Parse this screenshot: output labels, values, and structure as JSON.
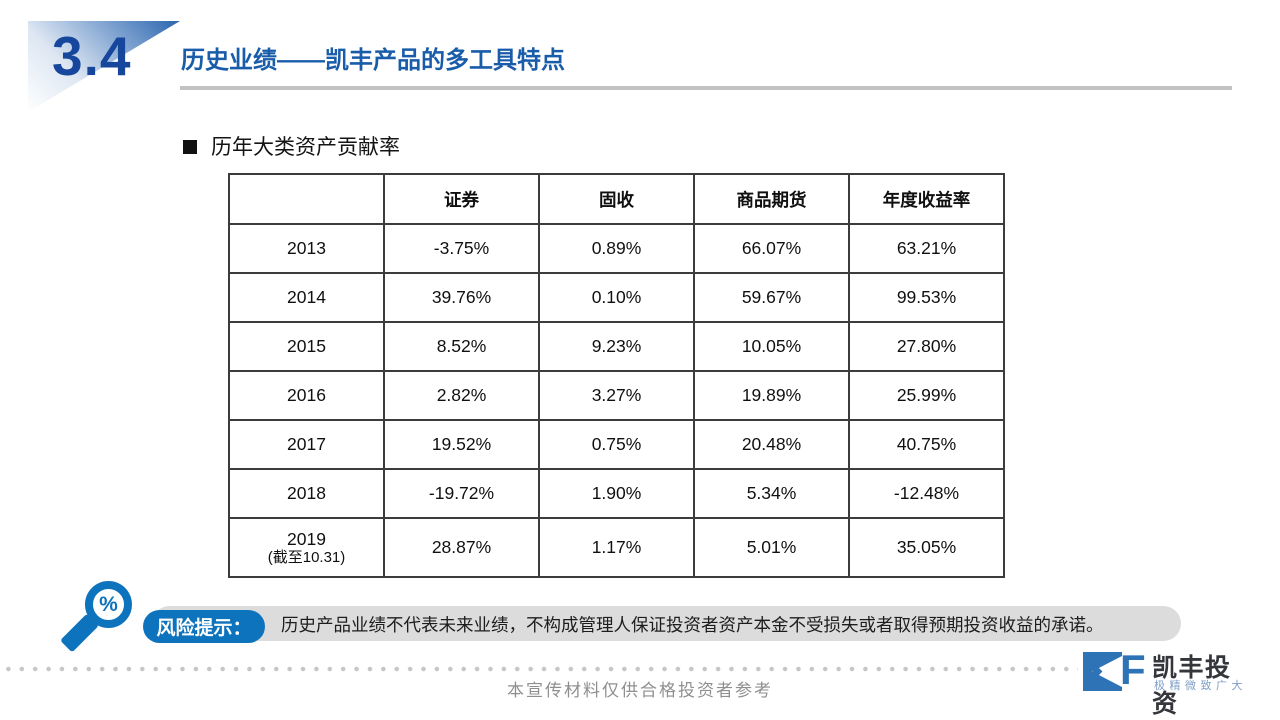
{
  "header": {
    "section_number": "3.4",
    "title": "历史业绩——凯丰产品的多工具特点"
  },
  "content": {
    "bullet_title": "历年大类资产贡献率"
  },
  "table": {
    "headers": [
      "",
      "证券",
      "固收",
      "商品期货",
      "年度收益率"
    ],
    "rows": [
      {
        "year": "2013",
        "year_note": "",
        "cells": [
          "-3.75%",
          "0.89%",
          "66.07%",
          "63.21%"
        ]
      },
      {
        "year": "2014",
        "year_note": "",
        "cells": [
          "39.76%",
          "0.10%",
          "59.67%",
          "99.53%"
        ]
      },
      {
        "year": "2015",
        "year_note": "",
        "cells": [
          "8.52%",
          "9.23%",
          "10.05%",
          "27.80%"
        ]
      },
      {
        "year": "2016",
        "year_note": "",
        "cells": [
          "2.82%",
          "3.27%",
          "19.89%",
          "25.99%"
        ]
      },
      {
        "year": "2017",
        "year_note": "",
        "cells": [
          "19.52%",
          "0.75%",
          "20.48%",
          "40.75%"
        ]
      },
      {
        "year": "2018",
        "year_note": "",
        "cells": [
          "-19.72%",
          "1.90%",
          "5.34%",
          "-12.48%"
        ]
      },
      {
        "year": "2019",
        "year_note": "(截至10.31)",
        "cells": [
          "28.87%",
          "1.17%",
          "5.01%",
          "35.05%"
        ]
      }
    ]
  },
  "risk": {
    "badge_label": "风险提示：",
    "text": "历史产品业绩不代表未来业绩，不构成管理人保证投资者资产本金不受损失或者取得预期投资收益的承诺。",
    "percent_symbol": "%"
  },
  "footer": {
    "disclaimer": "本宣传材料仅供合格投资者参考",
    "logo_name": "凯丰投资",
    "logo_tagline": "极精微致广大",
    "logo_letter": "F"
  },
  "colors": {
    "accent_blue": "#0e73bd",
    "navy": "#17479c",
    "title_blue": "#195ca9",
    "logo_blue": "#2e73b5",
    "bar_gray": "#dcdcdc",
    "rule_gray": "#c2c2c5"
  }
}
